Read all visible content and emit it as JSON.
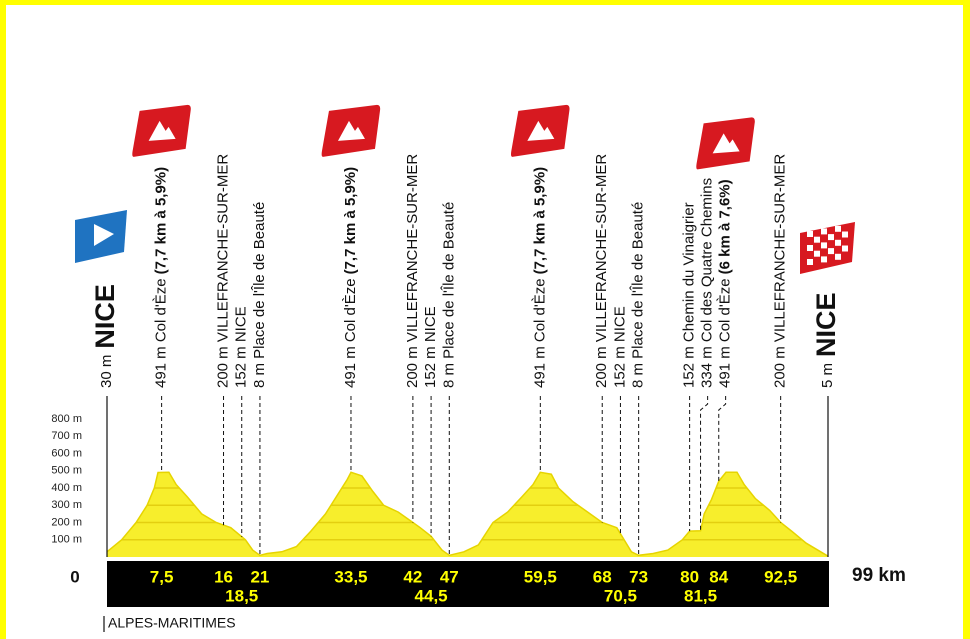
{
  "chart_data": {
    "type": "area",
    "x": [
      0,
      2,
      4,
      5.5,
      6.5,
      7,
      8.5,
      9.5,
      11,
      13,
      15,
      17,
      19,
      20,
      21,
      22,
      24,
      26,
      28,
      30,
      31.5,
      33,
      33.5,
      35,
      36.5,
      38,
      40,
      42,
      43,
      44.5,
      46,
      47,
      49,
      51,
      53,
      55,
      57,
      58.5,
      59.5,
      61,
      62,
      64,
      66,
      68,
      70,
      71,
      72,
      73,
      75,
      77,
      79,
      80,
      81.5,
      82,
      83,
      84,
      85,
      86.5,
      87.5,
      89,
      91,
      92.5,
      94,
      96,
      98,
      99
    ],
    "values": [
      30,
      100,
      200,
      300,
      400,
      490,
      491,
      420,
      350,
      250,
      200,
      170,
      100,
      40,
      10,
      20,
      30,
      60,
      150,
      250,
      350,
      450,
      491,
      470,
      380,
      300,
      260,
      200,
      170,
      120,
      40,
      10,
      30,
      70,
      200,
      260,
      350,
      420,
      491,
      480,
      400,
      320,
      260,
      200,
      170,
      100,
      30,
      10,
      20,
      40,
      100,
      150,
      152,
      250,
      334,
      440,
      491,
      491,
      420,
      340,
      270,
      200,
      150,
      80,
      30,
      5
    ],
    "color": "#f7ee2c",
    "stripe_color": "#e3cf10",
    "xlim": [
      0,
      99
    ],
    "ylim": [
      0,
      800
    ],
    "yticks": [
      {
        "value": 100,
        "label": "100 m"
      },
      {
        "value": 200,
        "label": "200 m"
      },
      {
        "value": 300,
        "label": "300 m"
      },
      {
        "value": 400,
        "label": "400 m"
      },
      {
        "value": 500,
        "label": "500 m"
      },
      {
        "value": 600,
        "label": "600 m"
      },
      {
        "value": 700,
        "label": "700 m"
      },
      {
        "value": 800,
        "label": "800 m"
      }
    ],
    "xticks": [
      0,
      {
        "value": 7.5,
        "label": "7,5"
      },
      16,
      {
        "value": 18.5,
        "label": "18,5"
      },
      21,
      {
        "value": 33.5,
        "label": "33,5"
      },
      42,
      {
        "value": 44.5,
        "label": "44,5"
      },
      47,
      {
        "value": 59.5,
        "label": "59,5"
      },
      68,
      {
        "value": 70.5,
        "label": "70,5"
      },
      73,
      80,
      {
        "value": 81.5,
        "label": "81,5"
      },
      84,
      {
        "value": 92.5,
        "label": "92,5"
      },
      {
        "value": 99,
        "label": "99 km"
      }
    ],
    "grid": true,
    "waypoints": [
      {
        "km": 0,
        "text": "30 m",
        "bold": "NICE",
        "icon": "start"
      },
      {
        "km": 7.5,
        "text": "491 m Col d'Èze",
        "bold": "(7,7 km à 5,9%)",
        "icon": "climb"
      },
      {
        "km": 16,
        "text": "200 m VILLEFRANCHE-SUR-MER"
      },
      {
        "km": 18.5,
        "text": "152 m NICE"
      },
      {
        "km": 21,
        "text": "8 m Place de l'Île de Beauté"
      },
      {
        "km": 33.5,
        "text": "491 m Col d'Èze",
        "bold": "(7,7 km à 5,9%)",
        "icon": "climb"
      },
      {
        "km": 42,
        "text": "200 m VILLEFRANCHE-SUR-MER"
      },
      {
        "km": 44.5,
        "text": "152 m NICE"
      },
      {
        "km": 47,
        "text": "8 m Place de l'Île de Beauté"
      },
      {
        "km": 59.5,
        "text": "491 m Col d'Èze",
        "bold": "(7,7 km à 5,9%)",
        "icon": "climb"
      },
      {
        "km": 68,
        "text": "200 m VILLEFRANCHE-SUR-MER"
      },
      {
        "km": 70.5,
        "text": "152 m NICE"
      },
      {
        "km": 73,
        "text": "8 m Place de l'Île de Beauté"
      },
      {
        "km": 80,
        "text": "152 m Chemin du Vinaigrier"
      },
      {
        "km": 81.5,
        "text": "334 m Col des Quatre Chemins"
      },
      {
        "km": 84,
        "text": "491 m Col d'Èze",
        "bold": "(6 km à 7,6%)",
        "icon": "climb"
      },
      {
        "km": 92.5,
        "text": "200 m VILLEFRANCHE-SUR-MER"
      },
      {
        "km": 99,
        "text": "5 m",
        "bold": "NICE",
        "icon": "finish"
      }
    ],
    "department": "ALPES-MARITIMES"
  }
}
